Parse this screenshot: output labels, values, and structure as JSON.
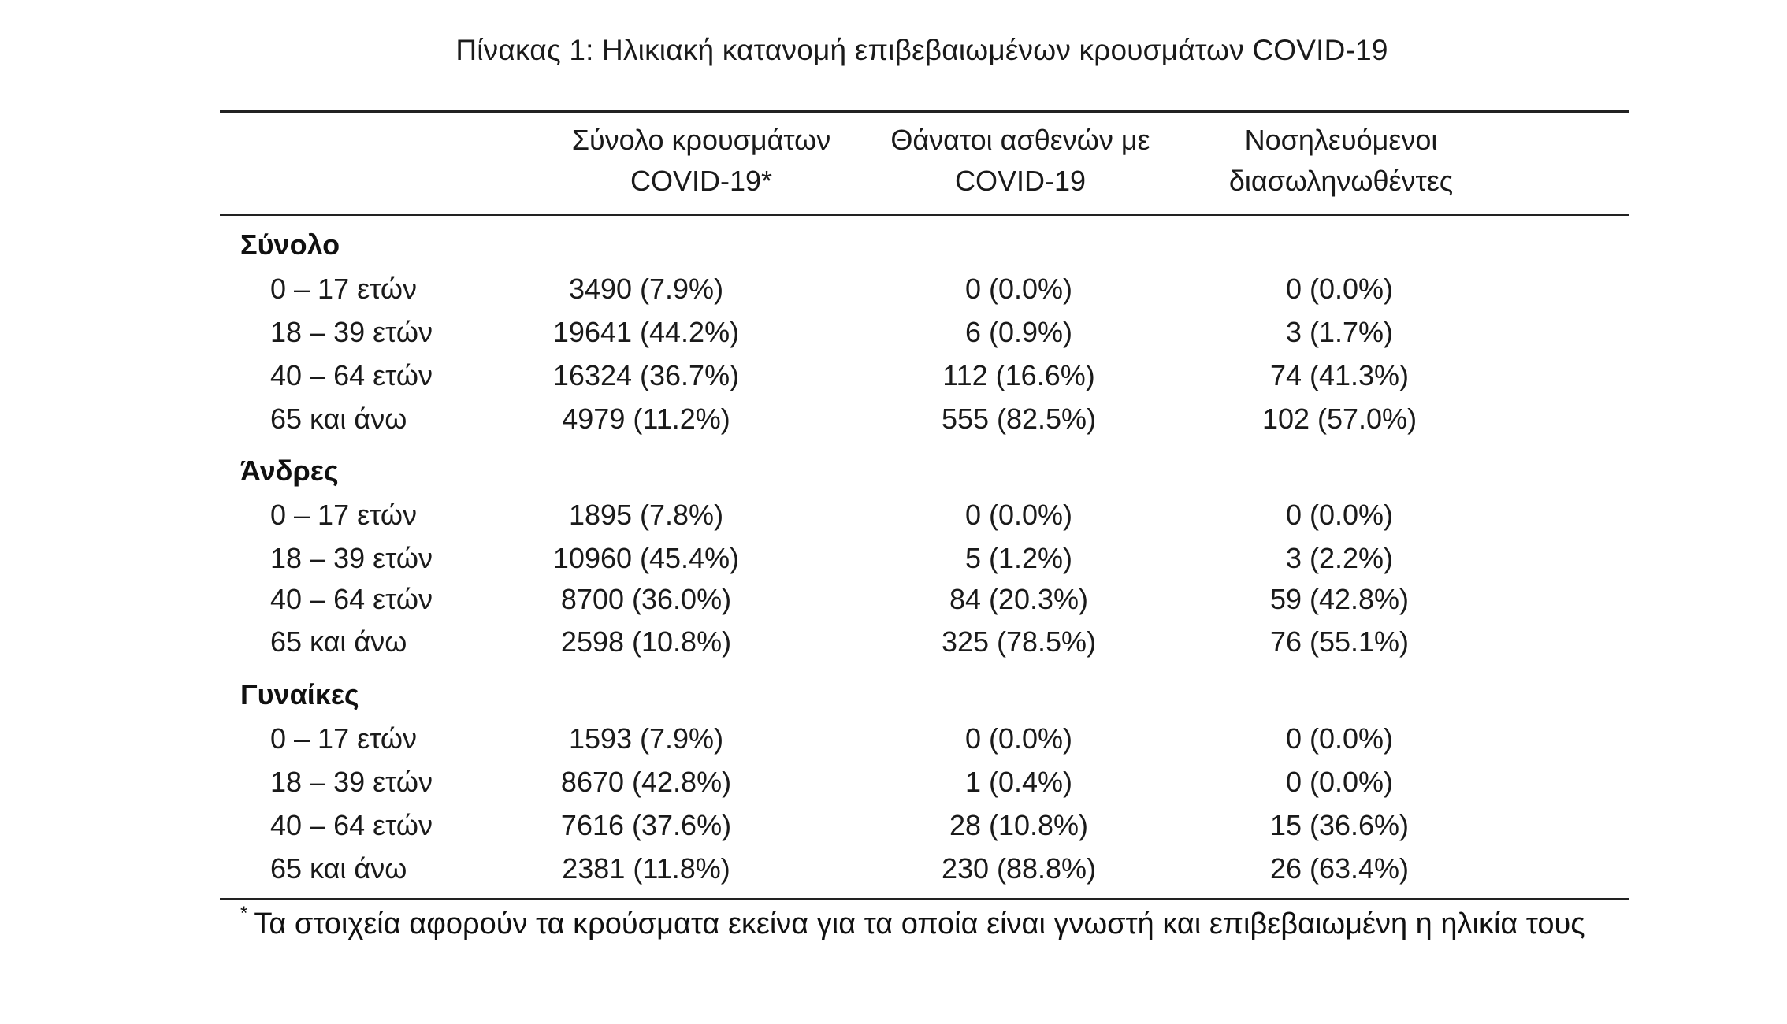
{
  "caption": "Πίνακας 1: Ηλικιακή κατανομή επιβεβαιωμένων κρουσμάτων COVID-19",
  "headers": [
    {
      "line1": "Σύνολο κρουσμάτων",
      "line2": "COVID-19*"
    },
    {
      "line1": "Θάνατοι ασθενών με",
      "line2": "COVID-19"
    },
    {
      "line1": "Νοσηλευόμενοι",
      "line2": "διασωληνωθέντες"
    }
  ],
  "groups": [
    {
      "name": "Σύνολο",
      "rows": [
        {
          "label": "0 – 17 ετών",
          "cases": "3490 (7.9%)",
          "deaths": "0 (0.0%)",
          "intubated": "0 (0.0%)"
        },
        {
          "label": "18 – 39 ετών",
          "cases": "19641 (44.2%)",
          "deaths": "6 (0.9%)",
          "intubated": "3 (1.7%)"
        },
        {
          "label": "40 – 64 ετών",
          "cases": "16324 (36.7%)",
          "deaths": "112 (16.6%)",
          "intubated": "74 (41.3%)"
        },
        {
          "label": "65 και άνω",
          "cases": "4979 (11.2%)",
          "deaths": "555 (82.5%)",
          "intubated": "102 (57.0%)"
        }
      ]
    },
    {
      "name": "Άνδρες",
      "rows": [
        {
          "label": "0 – 17 ετών",
          "cases": "1895 (7.8%)",
          "deaths": "0 (0.0%)",
          "intubated": "0 (0.0%)"
        },
        {
          "label": "18 – 39 ετών",
          "cases": "10960 (45.4%)",
          "deaths": "5 (1.2%)",
          "intubated": "3 (2.2%)"
        },
        {
          "label": "40 – 64 ετών",
          "cases": "8700 (36.0%)",
          "deaths": "84 (20.3%)",
          "intubated": "59 (42.8%)"
        },
        {
          "label": "65 και άνω",
          "cases": "2598 (10.8%)",
          "deaths": "325 (78.5%)",
          "intubated": "76 (55.1%)"
        }
      ]
    },
    {
      "name": "Γυναίκες",
      "rows": [
        {
          "label": "0 – 17 ετών",
          "cases": "1593 (7.9%)",
          "deaths": "0 (0.0%)",
          "intubated": "0 (0.0%)"
        },
        {
          "label": "18 – 39 ετών",
          "cases": "8670 (42.8%)",
          "deaths": "1 (0.4%)",
          "intubated": "0 (0.0%)"
        },
        {
          "label": "40 – 64 ετών",
          "cases": "7616 (37.6%)",
          "deaths": "28 (10.8%)",
          "intubated": "15 (36.6%)"
        },
        {
          "label": "65 και άνω",
          "cases": "2381 (11.8%)",
          "deaths": "230 (88.8%)",
          "intubated": "26 (63.4%)"
        }
      ]
    }
  ],
  "footnote": {
    "marker": "*",
    "text": "Τα στοιχεία αφορούν τα κρούσματα εκείνα για τα οποία είναι γνωστή και επιβεβαιωμένη η ηλικία τους"
  }
}
